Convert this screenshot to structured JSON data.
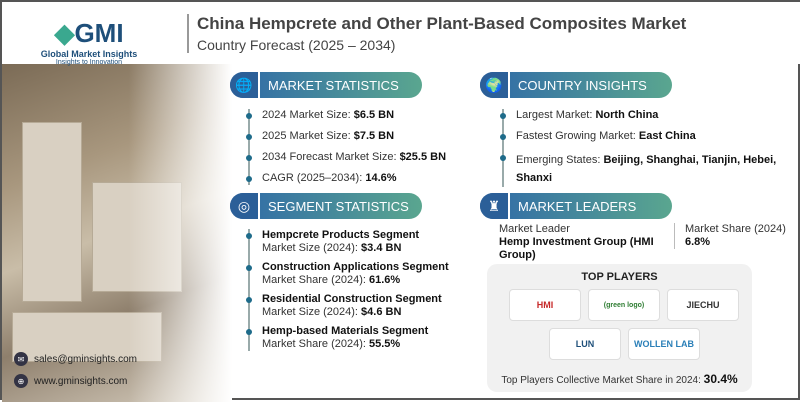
{
  "brand": {
    "logo_text": "GMI",
    "name": "Global Market Insights",
    "tagline": "Insights to Innovation"
  },
  "title": "China Hempcrete and Other Plant-Based Composites Market",
  "subtitle": "Country Forecast (2025 – 2034)",
  "market_statistics": {
    "header": "MARKET STATISTICS",
    "items": [
      {
        "label": "2024 Market Size: ",
        "value": "$6.5 BN"
      },
      {
        "label": "2025 Market Size: ",
        "value": "$7.5 BN"
      },
      {
        "label": "2034 Forecast Market Size: ",
        "value": "$25.5 BN"
      },
      {
        "label": "CAGR (2025–2034): ",
        "value": "14.6%"
      }
    ]
  },
  "country_insights": {
    "header": "COUNTRY INSIGHTS",
    "items": [
      {
        "label": "Largest Market: ",
        "value": "North China"
      },
      {
        "label": "Fastest Growing Market: ",
        "value": "East China"
      },
      {
        "label": "Emerging States: ",
        "value": "Beijing, Shanghai, Tianjin, Hebei, Shanxi"
      }
    ]
  },
  "segment_statistics": {
    "header": "SEGMENT STATISTICS",
    "items": [
      {
        "title": "Hempcrete Products Segment",
        "label": "Market Size (2024): ",
        "value": "$3.4 BN"
      },
      {
        "title": "Construction Applications Segment",
        "label": "Market Share (2024): ",
        "value": "61.6%"
      },
      {
        "title": "Residential Construction Segment",
        "label": "Market Size (2024): ",
        "value": "$4.6 BN"
      },
      {
        "title": "Hemp-based Materials Segment",
        "label": "Market Share (2024): ",
        "value": "55.5%"
      }
    ]
  },
  "market_leaders": {
    "header": "MARKET LEADERS",
    "leader_label": "Market Leader",
    "leader": "Hemp Investment Group (HMI Group)",
    "share_label": "Market Share (2024)",
    "share": "6.8%"
  },
  "top_players": {
    "header": "TOP PLAYERS",
    "logos": [
      "HMI",
      "(green logo)",
      "JIECHU",
      "LUN",
      "WOLLEN LAB"
    ],
    "footer_label": "Top Players Collective Market Share in 2024: ",
    "footer_value": "30.4%"
  },
  "contact": {
    "email": "sales@gminsights.com",
    "website": "www.gminsights.com"
  }
}
